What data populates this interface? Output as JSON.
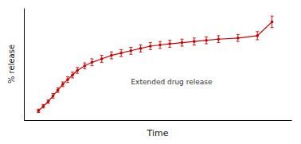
{
  "chart_data": {
    "type": "line",
    "xlabel": "Time",
    "ylabel": "% release",
    "annotations": [
      "Extended drug release"
    ],
    "x": [
      0.04,
      0.06,
      0.08,
      0.1,
      0.12,
      0.14,
      0.16,
      0.18,
      0.2,
      0.23,
      0.26,
      0.3,
      0.34,
      0.38,
      0.42,
      0.46,
      0.5,
      0.54,
      0.58,
      0.63,
      0.68,
      0.73,
      0.78,
      0.86,
      0.94,
      1.0
    ],
    "values": [
      3,
      7,
      11,
      16,
      21,
      26,
      30,
      34,
      38,
      42,
      45,
      48,
      51,
      53,
      55,
      57,
      59,
      60,
      61,
      62,
      63,
      64,
      65,
      66,
      68,
      80
    ],
    "error": [
      1.5,
      1.5,
      1.5,
      2.0,
      2.0,
      2.0,
      2.5,
      2.5,
      2.5,
      2.5,
      3.0,
      3.0,
      3.0,
      3.0,
      3.0,
      3.0,
      3.0,
      3.0,
      3.0,
      3.0,
      3.0,
      3.0,
      3.0,
      3.0,
      3.5,
      5.0
    ],
    "color": "#cc0000",
    "marker": "circle",
    "line_style": "solid",
    "xlim": [
      -0.02,
      1.08
    ],
    "ylim": [
      -5,
      92
    ],
    "tick_labels": false,
    "grid": false
  }
}
